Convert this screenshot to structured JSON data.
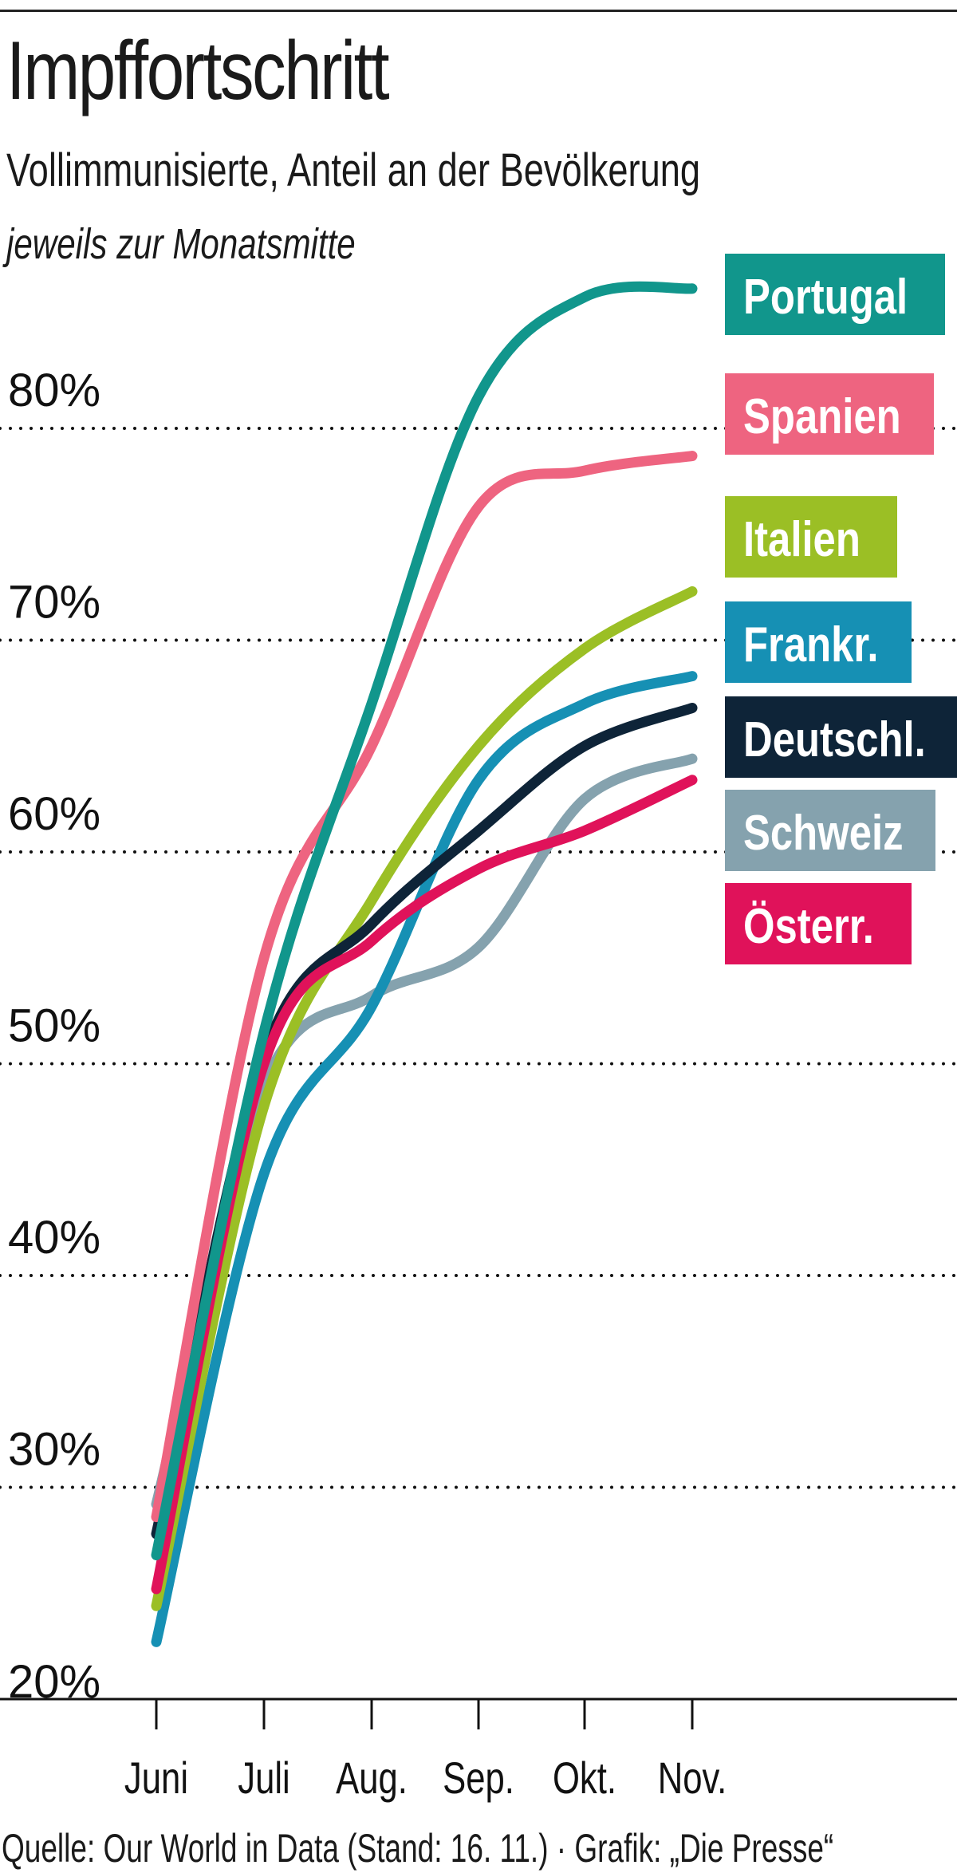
{
  "header": {
    "title": "Impffortschritt",
    "subtitle": "Vollimmunisierte, Anteil an der Bevölkerung",
    "note": "jeweils zur Monatsmitte"
  },
  "footer": {
    "source": "Quelle: Our World in Data (Stand: 16. 11.) · Grafik: „Die Presse“"
  },
  "chart_data": {
    "type": "line",
    "title": "Impffortschritt",
    "x": [
      "Juni",
      "Juli",
      "Aug.",
      "Sep.",
      "Okt.",
      "Nov."
    ],
    "y_ticks": [
      "20%",
      "30%",
      "40%",
      "50%",
      "60%",
      "70%",
      "80%"
    ],
    "ylim": [
      20,
      90
    ],
    "grid": true,
    "legend": "right, direct labels",
    "series": [
      {
        "name": "Portugal",
        "color": "#11968c",
        "values": [
          26.8,
          51.5,
          67,
          81.5,
          86.2,
          86.6
        ]
      },
      {
        "name": "Spanien",
        "color": "#ee6480",
        "values": [
          28.6,
          55,
          65,
          76.3,
          78,
          78.7
        ]
      },
      {
        "name": "Italien",
        "color": "#9bbf25",
        "values": [
          24.4,
          48,
          57.7,
          65,
          69.6,
          72.3
        ]
      },
      {
        "name": "Frankr.",
        "color": "#1690b4",
        "values": [
          22.7,
          44.8,
          52.7,
          63.4,
          67,
          68.3
        ]
      },
      {
        "name": "Deutschl.",
        "color": "#0e2438",
        "values": [
          27.8,
          50.4,
          56.6,
          61,
          65,
          66.8
        ]
      },
      {
        "name": "Schweiz",
        "color": "#85a2ae",
        "values": [
          29.2,
          49,
          53.2,
          55.5,
          62.5,
          64.4
        ]
      },
      {
        "name": "Österr.",
        "color": "#e0125a",
        "values": [
          25.2,
          50,
          55.8,
          59.2,
          61,
          63.4
        ]
      }
    ]
  }
}
